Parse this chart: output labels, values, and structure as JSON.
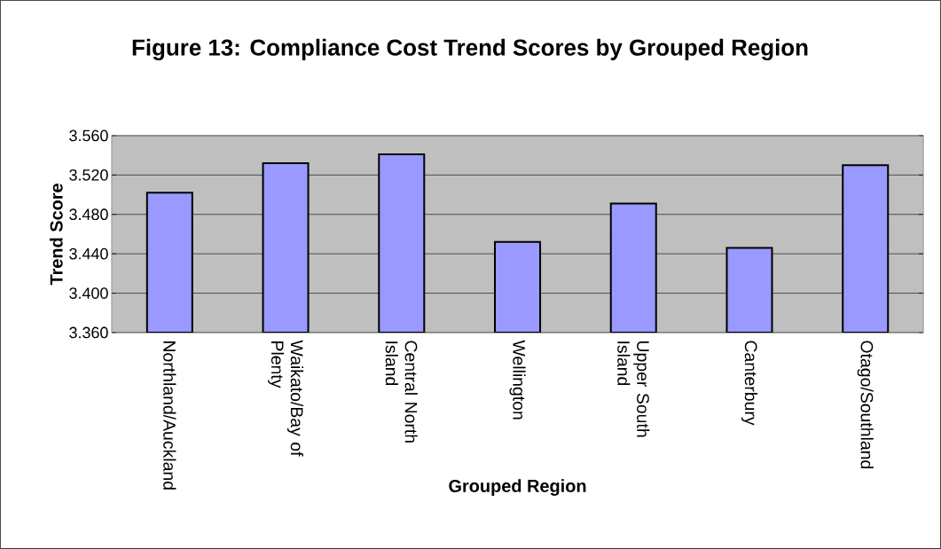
{
  "chart_data": {
    "type": "bar",
    "title": "Figure 13: Compliance Cost Trend Scores by Grouped Region",
    "xlabel": "Grouped Region",
    "ylabel": "Trend Score",
    "categories": [
      "Northland/Auckland",
      "Waikato/Bay of Plenty",
      "Central North Island",
      "Wellington",
      "Upper South Island",
      "Canterbury",
      "Otago/Southland"
    ],
    "values": [
      3.502,
      3.532,
      3.541,
      3.452,
      3.491,
      3.446,
      3.53
    ],
    "color": "#9999ff",
    "ylim": [
      3.36,
      3.56
    ],
    "yticks": [
      {
        "value": 3.36,
        "label": "3.360"
      },
      {
        "value": 3.4,
        "label": "3.400"
      },
      {
        "value": 3.44,
        "label": "3.440"
      },
      {
        "value": 3.48,
        "label": "3.480"
      },
      {
        "value": 3.52,
        "label": "3.520"
      },
      {
        "value": 3.56,
        "label": "3.560"
      }
    ],
    "grid": "y"
  }
}
